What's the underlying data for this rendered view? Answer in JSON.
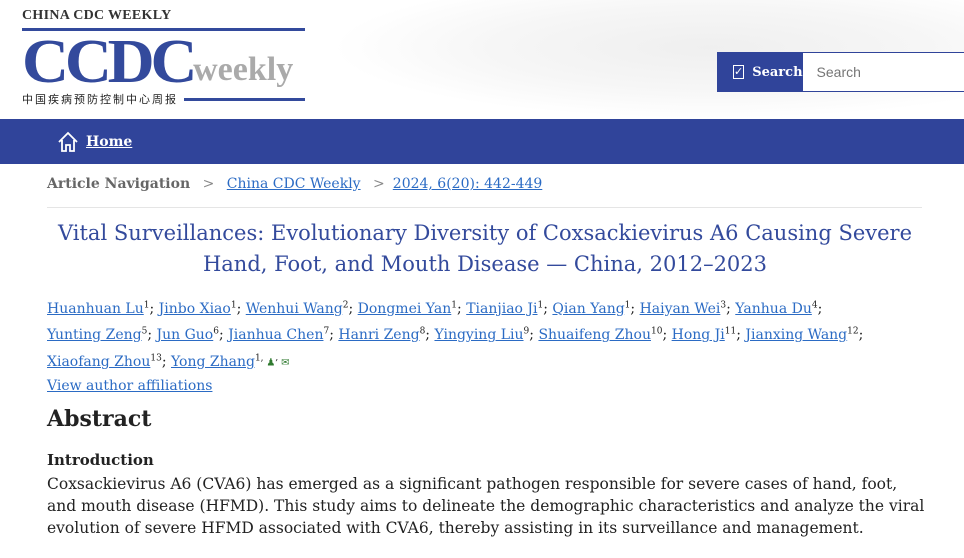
{
  "header": {
    "brand_small": "CHINA CDC WEEKLY",
    "brand_big": "CCDC",
    "brand_weekly": "weekly",
    "brand_chinese": "中国疾病预防控制中心周报"
  },
  "search": {
    "label": "Search",
    "placeholder": "Search"
  },
  "nav": {
    "home": "Home"
  },
  "breadcrumb": {
    "label": "Article Navigation",
    "sep": ">",
    "journal": "China CDC Weekly",
    "issue": "2024, 6(20): 442-449"
  },
  "article": {
    "title": "Vital Surveillances: Evolutionary Diversity of Coxsackievirus A6 Causing Severe Hand, Foot, and Mouth Disease — China, 2012–2023",
    "authors": [
      {
        "name": "Huanhuan Lu",
        "sup": "1"
      },
      {
        "name": "Jinbo Xiao",
        "sup": "1"
      },
      {
        "name": "Wenhui Wang",
        "sup": "2"
      },
      {
        "name": "Dongmei Yan",
        "sup": "1"
      },
      {
        "name": "Tianjiao Ji",
        "sup": "1"
      },
      {
        "name": "Qian Yang",
        "sup": "1"
      },
      {
        "name": "Haiyan Wei",
        "sup": "3"
      },
      {
        "name": "Yanhua Du",
        "sup": "4"
      },
      {
        "name": "Yunting Zeng",
        "sup": "5"
      },
      {
        "name": "Jun Guo",
        "sup": "6"
      },
      {
        "name": "Jianhua Chen",
        "sup": "7"
      },
      {
        "name": "Hanri Zeng",
        "sup": "8"
      },
      {
        "name": "Yingying Liu",
        "sup": "9"
      },
      {
        "name": "Shuaifeng Zhou",
        "sup": "10"
      },
      {
        "name": "Hong Ji",
        "sup": "11"
      },
      {
        "name": "Jianxing Wang",
        "sup": "12"
      },
      {
        "name": "Xiaofang Zhou",
        "sup": "13"
      },
      {
        "name": "Yong Zhang",
        "sup": "1, "
      }
    ],
    "affiliations_link": "View author affiliations",
    "abstract_heading": "Abstract",
    "intro_heading": "Introduction",
    "intro_text": "Coxsackievirus A6 (CVA6) has emerged as a significant pathogen responsible for severe cases of hand, foot, and mouth disease (HFMD). This study aims to delineate the demographic characteristics and analyze the viral evolution of severe HFMD associated with CVA6, thereby assisting in its surveillance and management."
  },
  "colors": {
    "brand": "#30449a",
    "link": "#2b6bc4",
    "title": "#334a9c"
  }
}
